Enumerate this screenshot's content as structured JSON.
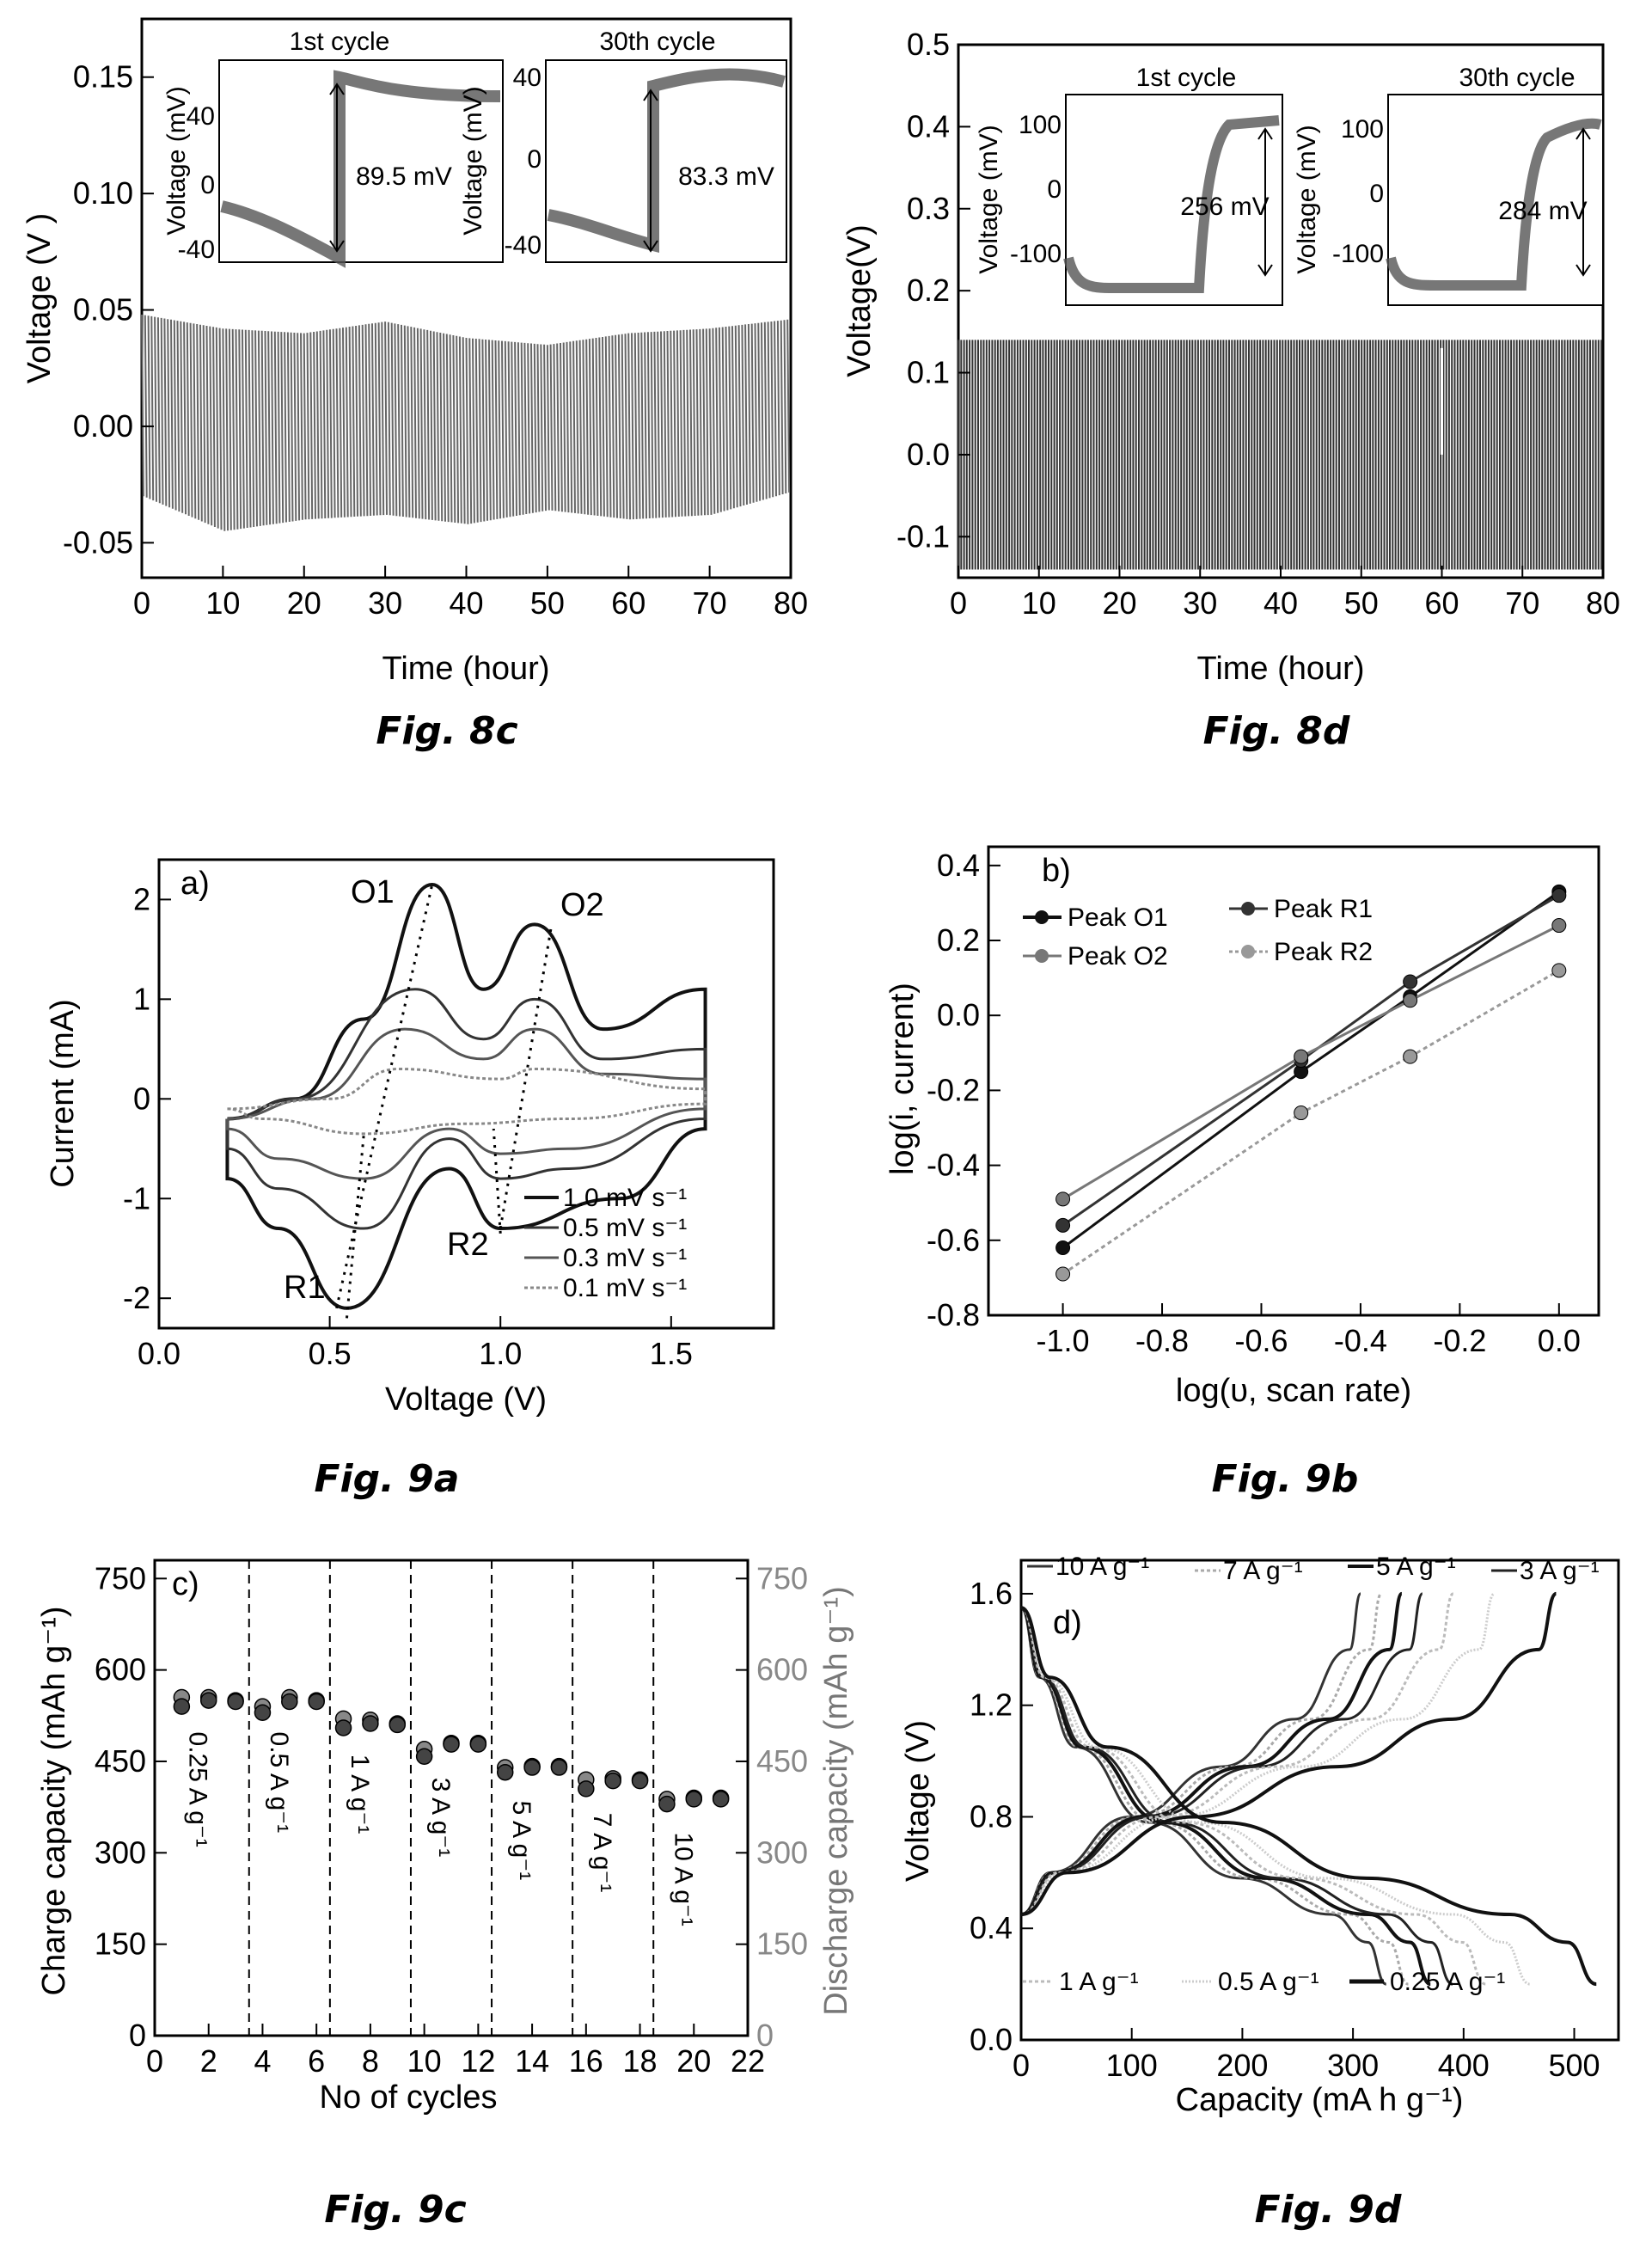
{
  "chart_data": [
    {
      "id": "8c",
      "caption": "Fig. 8c",
      "type": "line",
      "xlabel": "Time (hour)",
      "ylabel": "Voltage (V )",
      "xlim": [
        0,
        80
      ],
      "ylim": [
        -0.065,
        0.175
      ],
      "xticks": [
        "0",
        "10",
        "20",
        "30",
        "40",
        "50",
        "60",
        "70",
        "80"
      ],
      "yticks": [
        "-0.05",
        "0.00",
        "0.05",
        "0.10",
        "0.15"
      ],
      "series": [
        {
          "band": {
            "x": [
              0,
              10,
              20,
              30,
              40,
              50,
              60,
              70,
              80
            ],
            "ymax": [
              0.048,
              0.042,
              0.04,
              0.045,
              0.038,
              0.035,
              0.04,
              0.042,
              0.046
            ],
            "ymin": [
              -0.03,
              -0.045,
              -0.04,
              -0.038,
              -0.042,
              -0.036,
              -0.04,
              -0.038,
              -0.028
            ]
          }
        }
      ],
      "insets": [
        {
          "title": "1st cycle",
          "ylabel": "Voltage (mV)",
          "yticks": [
            "-40",
            "0",
            "40"
          ],
          "annotation": "89.5 mV"
        },
        {
          "title": "30th cycle",
          "ylabel": "Voltage (mV)",
          "yticks": [
            "-40",
            "0",
            "40"
          ],
          "annotation": "83.3 mV"
        }
      ]
    },
    {
      "id": "8d",
      "caption": "Fig. 8d",
      "type": "line",
      "xlabel": "Time (hour)",
      "ylabel": "Voltage(V)",
      "xlim": [
        0,
        80
      ],
      "ylim": [
        -0.15,
        0.5
      ],
      "xticks": [
        "0",
        "10",
        "20",
        "30",
        "40",
        "50",
        "60",
        "70",
        "80"
      ],
      "yticks": [
        "-0.1",
        "0.0",
        "0.1",
        "0.2",
        "0.3",
        "0.4",
        "0.5"
      ],
      "series": [
        {
          "band": {
            "x": [
              0,
              80
            ],
            "ymax": [
              0.14,
              0.14
            ],
            "ymin": [
              -0.14,
              -0.14
            ]
          }
        }
      ],
      "insets": [
        {
          "title": "1st cycle",
          "ylabel": "Voltage (mV)",
          "yticks": [
            "-100",
            "0",
            "100"
          ],
          "annotation": "256 mV"
        },
        {
          "title": "30th cycle",
          "ylabel": "Voltage (mV)",
          "yticks": [
            "-100",
            "0",
            "100"
          ],
          "annotation": "284 mV"
        }
      ]
    },
    {
      "id": "9a",
      "caption": "Fig. 9a",
      "panel": "a)",
      "type": "line",
      "xlabel": "Voltage (V)",
      "ylabel": "Current (mA)",
      "xlim": [
        0,
        1.8
      ],
      "ylim": [
        -2.3,
        2.4
      ],
      "xticks": [
        "0.0",
        "0.5",
        "1.0",
        "1.5"
      ],
      "yticks": [
        "-2",
        "-1",
        "0",
        "1",
        "2"
      ],
      "peaks": [
        "O1",
        "O2",
        "R1",
        "R2"
      ],
      "legend": [
        "1.0 mV s⁻¹",
        "0.5 mV s⁻¹",
        "0.3 mV s⁻¹",
        "0.1 mV s⁻¹"
      ],
      "series": [
        {
          "rate": 1.0,
          "oxidation": [
            [
              0.2,
              -0.2
            ],
            [
              0.4,
              0.0
            ],
            [
              0.6,
              0.8
            ],
            [
              0.8,
              2.15
            ],
            [
              0.95,
              1.1
            ],
            [
              1.1,
              1.75
            ],
            [
              1.3,
              0.7
            ],
            [
              1.6,
              1.1
            ]
          ],
          "reduction": [
            [
              1.6,
              -0.3
            ],
            [
              1.35,
              -1.0
            ],
            [
              1.0,
              -1.3
            ],
            [
              0.85,
              -0.7
            ],
            [
              0.55,
              -2.1
            ],
            [
              0.35,
              -1.3
            ],
            [
              0.2,
              -0.8
            ]
          ]
        },
        {
          "rate": 0.5,
          "oxidation": [
            [
              0.2,
              -0.2
            ],
            [
              0.4,
              0.0
            ],
            [
              0.75,
              1.1
            ],
            [
              0.95,
              0.6
            ],
            [
              1.1,
              1.0
            ],
            [
              1.3,
              0.4
            ],
            [
              1.6,
              0.5
            ]
          ],
          "reduction": [
            [
              1.6,
              -0.2
            ],
            [
              1.2,
              -0.7
            ],
            [
              1.0,
              -0.8
            ],
            [
              0.85,
              -0.4
            ],
            [
              0.6,
              -1.3
            ],
            [
              0.35,
              -0.9
            ],
            [
              0.2,
              -0.5
            ]
          ]
        },
        {
          "rate": 0.3,
          "oxidation": [
            [
              0.2,
              -0.2
            ],
            [
              0.45,
              0.0
            ],
            [
              0.72,
              0.7
            ],
            [
              0.95,
              0.4
            ],
            [
              1.1,
              0.7
            ],
            [
              1.3,
              0.25
            ],
            [
              1.6,
              0.2
            ]
          ],
          "reduction": [
            [
              1.6,
              -0.1
            ],
            [
              1.2,
              -0.5
            ],
            [
              1.0,
              -0.55
            ],
            [
              0.85,
              -0.3
            ],
            [
              0.6,
              -0.8
            ],
            [
              0.35,
              -0.6
            ],
            [
              0.2,
              -0.3
            ]
          ]
        },
        {
          "rate": 0.1,
          "oxidation": [
            [
              0.2,
              -0.1
            ],
            [
              0.5,
              0.0
            ],
            [
              0.7,
              0.3
            ],
            [
              1.0,
              0.2
            ],
            [
              1.1,
              0.3
            ],
            [
              1.6,
              0.1
            ]
          ],
          "reduction": [
            [
              1.6,
              -0.05
            ],
            [
              1.2,
              -0.2
            ],
            [
              0.9,
              -0.25
            ],
            [
              0.6,
              -0.35
            ],
            [
              0.3,
              -0.2
            ],
            [
              0.2,
              -0.1
            ]
          ]
        }
      ]
    },
    {
      "id": "9b",
      "caption": "Fig. 9b",
      "panel": "b)",
      "type": "line",
      "xlabel": "log(υ, scan rate)",
      "ylabel": "log(i, current)",
      "xlim": [
        -1.15,
        0.08
      ],
      "ylim": [
        -0.8,
        0.45
      ],
      "xticks": [
        "-1.0",
        "-0.8",
        "-0.6",
        "-0.4",
        "-0.2",
        "0.0"
      ],
      "yticks": [
        "-0.8",
        "-0.6",
        "-0.4",
        "-0.2",
        "0.0",
        "0.2",
        "0.4"
      ],
      "x": [
        -1.0,
        -0.52,
        -0.3,
        0.0
      ],
      "series": [
        {
          "name": "Peak O1",
          "values": [
            -0.62,
            -0.15,
            0.05,
            0.33
          ]
        },
        {
          "name": "Peak R1",
          "values": [
            -0.56,
            -0.12,
            0.09,
            0.32
          ]
        },
        {
          "name": "Peak O2",
          "values": [
            -0.49,
            -0.11,
            0.04,
            0.24
          ]
        },
        {
          "name": "Peak R2",
          "values": [
            -0.69,
            -0.26,
            -0.11,
            0.12
          ]
        }
      ]
    },
    {
      "id": "9c",
      "caption": "Fig. 9c",
      "panel": "c)",
      "type": "scatter",
      "xlabel": "No of cycles",
      "ylabel": "Charge capacity (mAh g⁻¹)",
      "ylabel_right": "Discharge capacity (mAh g⁻¹)",
      "xlim": [
        0,
        22
      ],
      "ylim": [
        0,
        780
      ],
      "xticks": [
        "0",
        "2",
        "4",
        "6",
        "8",
        "10",
        "12",
        "14",
        "16",
        "18",
        "20",
        "22"
      ],
      "yticks": [
        "0",
        "150",
        "300",
        "450",
        "600",
        "750"
      ],
      "rate_labels": [
        "0.25 A g⁻¹",
        "0.5 A g⁻¹",
        "1 A g⁻¹",
        "3 A g⁻¹",
        "5 A g⁻¹",
        "7 A g⁻¹",
        "10 A g⁻¹"
      ],
      "dividers": [
        3.5,
        6.5,
        9.5,
        12.5,
        15.5,
        18.5
      ],
      "x": [
        1,
        2,
        3,
        4,
        5,
        6,
        7,
        8,
        9,
        10,
        11,
        12,
        13,
        14,
        15,
        16,
        17,
        18,
        19,
        20,
        21
      ],
      "series": [
        {
          "values": [
            555,
            555,
            550,
            540,
            555,
            550,
            520,
            518,
            512,
            470,
            480,
            480,
            440,
            442,
            442,
            420,
            422,
            420,
            388,
            390,
            390
          ]
        },
        {
          "values": [
            540,
            550,
            548,
            530,
            548,
            548,
            505,
            512,
            510,
            458,
            478,
            478,
            432,
            440,
            440,
            405,
            418,
            418,
            380,
            388,
            388
          ]
        }
      ]
    },
    {
      "id": "9d",
      "caption": "Fig. 9d",
      "panel": "d)",
      "type": "line",
      "xlabel": "Capacity (mA h g⁻¹)",
      "ylabel": "Voltage (V)",
      "xlim": [
        0,
        540
      ],
      "ylim": [
        0,
        1.72
      ],
      "xticks": [
        "0",
        "100",
        "200",
        "300",
        "400",
        "500"
      ],
      "yticks": [
        "0.0",
        "0.4",
        "0.8",
        "1.2",
        "1.6"
      ],
      "legend_top": [
        "10 A g⁻¹",
        "7 A g⁻¹",
        "5 A g⁻¹",
        "3 A g⁻¹"
      ],
      "legend_bottom": [
        "1 A g⁻¹",
        "0.5 A g⁻¹",
        "0.25 A g⁻¹"
      ],
      "series": [
        {
          "name": "10 A g⁻¹",
          "capacity": 330
        },
        {
          "name": "7 A g⁻¹",
          "capacity": 350
        },
        {
          "name": "5 A g⁻¹",
          "capacity": 370
        },
        {
          "name": "3 A g⁻¹",
          "capacity": 390
        },
        {
          "name": "1 A g⁻¹",
          "capacity": 420
        },
        {
          "name": "0.5 A g⁻¹",
          "capacity": 460
        },
        {
          "name": "0.25 A g⁻¹",
          "capacity": 520
        }
      ]
    }
  ]
}
